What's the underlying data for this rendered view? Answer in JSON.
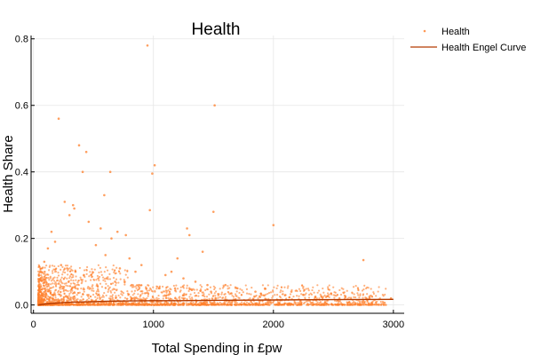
{
  "chart_data": {
    "type": "scatter",
    "title": "Health",
    "xlabel": "Total Spending in £pw",
    "ylabel": "Health Share",
    "xlim": [
      -20,
      3090
    ],
    "ylim": [
      -0.025,
      0.81
    ],
    "x_ticks": [
      0,
      1000,
      2000,
      3000
    ],
    "x_tick_labels": [
      "0",
      "1000",
      "2000",
      "3000"
    ],
    "y_ticks": [
      0.0,
      0.2,
      0.4,
      0.6,
      0.8
    ],
    "y_tick_labels": [
      "0.0",
      "0.2",
      "0.4",
      "0.6",
      "0.8"
    ],
    "grid": true,
    "legend_position": "outside-top-right",
    "legend": [
      "Health",
      "Health Engel Curve"
    ],
    "colors": {
      "scatter": "#ff7f2a",
      "curve": "#b33a00"
    },
    "series": [
      {
        "name": "Health",
        "kind": "scatter",
        "x": [
          950,
          1510,
          210,
          380,
          440,
          410,
          640,
          590,
          990,
          1010,
          970,
          1500,
          2000,
          2750,
          260,
          330,
          340,
          300,
          460,
          560,
          700,
          770,
          800,
          900,
          150,
          1280,
          1300,
          1410,
          1200,
          180,
          120,
          90,
          60,
          520,
          600,
          650,
          720,
          850,
          1100,
          1150,
          1250,
          1350,
          1450,
          1600,
          1700,
          1850,
          2150,
          2250,
          2350,
          2550,
          2800,
          2980,
          230,
          280,
          350,
          420,
          480,
          540,
          610,
          680,
          760,
          820,
          880,
          940,
          1050,
          1180,
          1320,
          1480,
          1650,
          1900,
          2100,
          2400
        ],
        "y": [
          0.78,
          0.6,
          0.56,
          0.48,
          0.46,
          0.4,
          0.4,
          0.33,
          0.395,
          0.42,
          0.285,
          0.28,
          0.24,
          0.135,
          0.31,
          0.3,
          0.29,
          0.27,
          0.25,
          0.23,
          0.22,
          0.21,
          0.14,
          0.12,
          0.22,
          0.23,
          0.21,
          0.16,
          0.14,
          0.19,
          0.17,
          0.13,
          0.1,
          0.18,
          0.15,
          0.2,
          0.11,
          0.1,
          0.09,
          0.1,
          0.08,
          0.07,
          0.06,
          0.06,
          0.05,
          0.04,
          0.04,
          0.03,
          0.025,
          0.02,
          0.02,
          0.02,
          0.12,
          0.11,
          0.1,
          0.09,
          0.09,
          0.08,
          0.08,
          0.07,
          0.07,
          0.06,
          0.06,
          0.05,
          0.05,
          0.05,
          0.045,
          0.04,
          0.035,
          0.03,
          0.03,
          0.025
        ]
      },
      {
        "name": "Health Engel Curve",
        "kind": "line",
        "x": [
          40,
          100,
          200,
          300,
          400,
          500,
          600,
          800,
          1000,
          1200,
          1500,
          2000,
          2500,
          3000
        ],
        "y": [
          0.0,
          0.003,
          0.006,
          0.008,
          0.009,
          0.01,
          0.011,
          0.012,
          0.013,
          0.013,
          0.014,
          0.015,
          0.016,
          0.017
        ]
      }
    ]
  }
}
